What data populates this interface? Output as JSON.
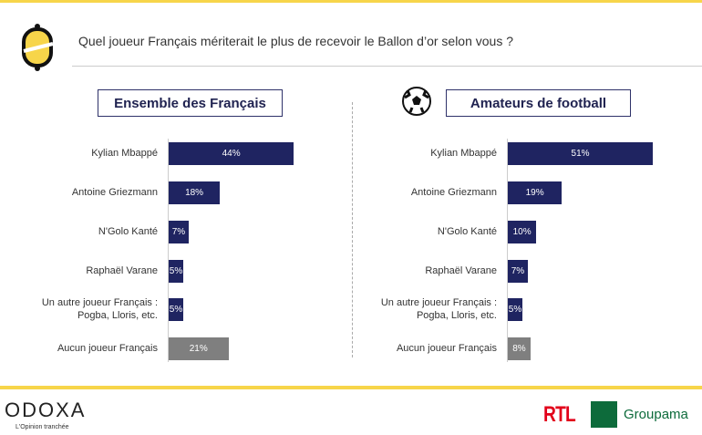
{
  "question": "Quel joueur Français mériterait le plus de recevoir le Ballon d’or selon vous ?",
  "footer": {
    "brand": "ODOXA",
    "tagline": "L'Opinion tranchée",
    "partner1": "RTL",
    "partner2": "Groupama"
  },
  "colors": {
    "main": "#1f2461",
    "other": "#7f7f7f",
    "accent": "#f7d54a"
  },
  "chart_data": [
    {
      "type": "bar",
      "orientation": "horizontal",
      "title": "Ensemble des Français",
      "categories": [
        "Kylian Mbappé",
        "Antoine Griezmann",
        "N'Golo Kanté",
        "Raphaël Varane",
        "Un autre joueur Français : Pogba, Lloris, etc.",
        "Aucun joueur Français"
      ],
      "values": [
        44,
        18,
        7,
        5,
        5,
        21
      ],
      "labels": [
        "44%",
        "18%",
        "7%",
        "5%",
        "5%",
        "21%"
      ],
      "unit": "%"
    },
    {
      "type": "bar",
      "orientation": "horizontal",
      "title": "Amateurs de football",
      "categories": [
        "Kylian Mbappé",
        "Antoine Griezmann",
        "N'Golo Kanté",
        "Raphaël Varane",
        "Un autre joueur Français : Pogba, Lloris, etc.",
        "Aucun joueur Français"
      ],
      "values": [
        51,
        19,
        10,
        7,
        5,
        8
      ],
      "labels": [
        "51%",
        "19%",
        "10%",
        "7%",
        "5%",
        "8%"
      ],
      "unit": "%"
    }
  ]
}
